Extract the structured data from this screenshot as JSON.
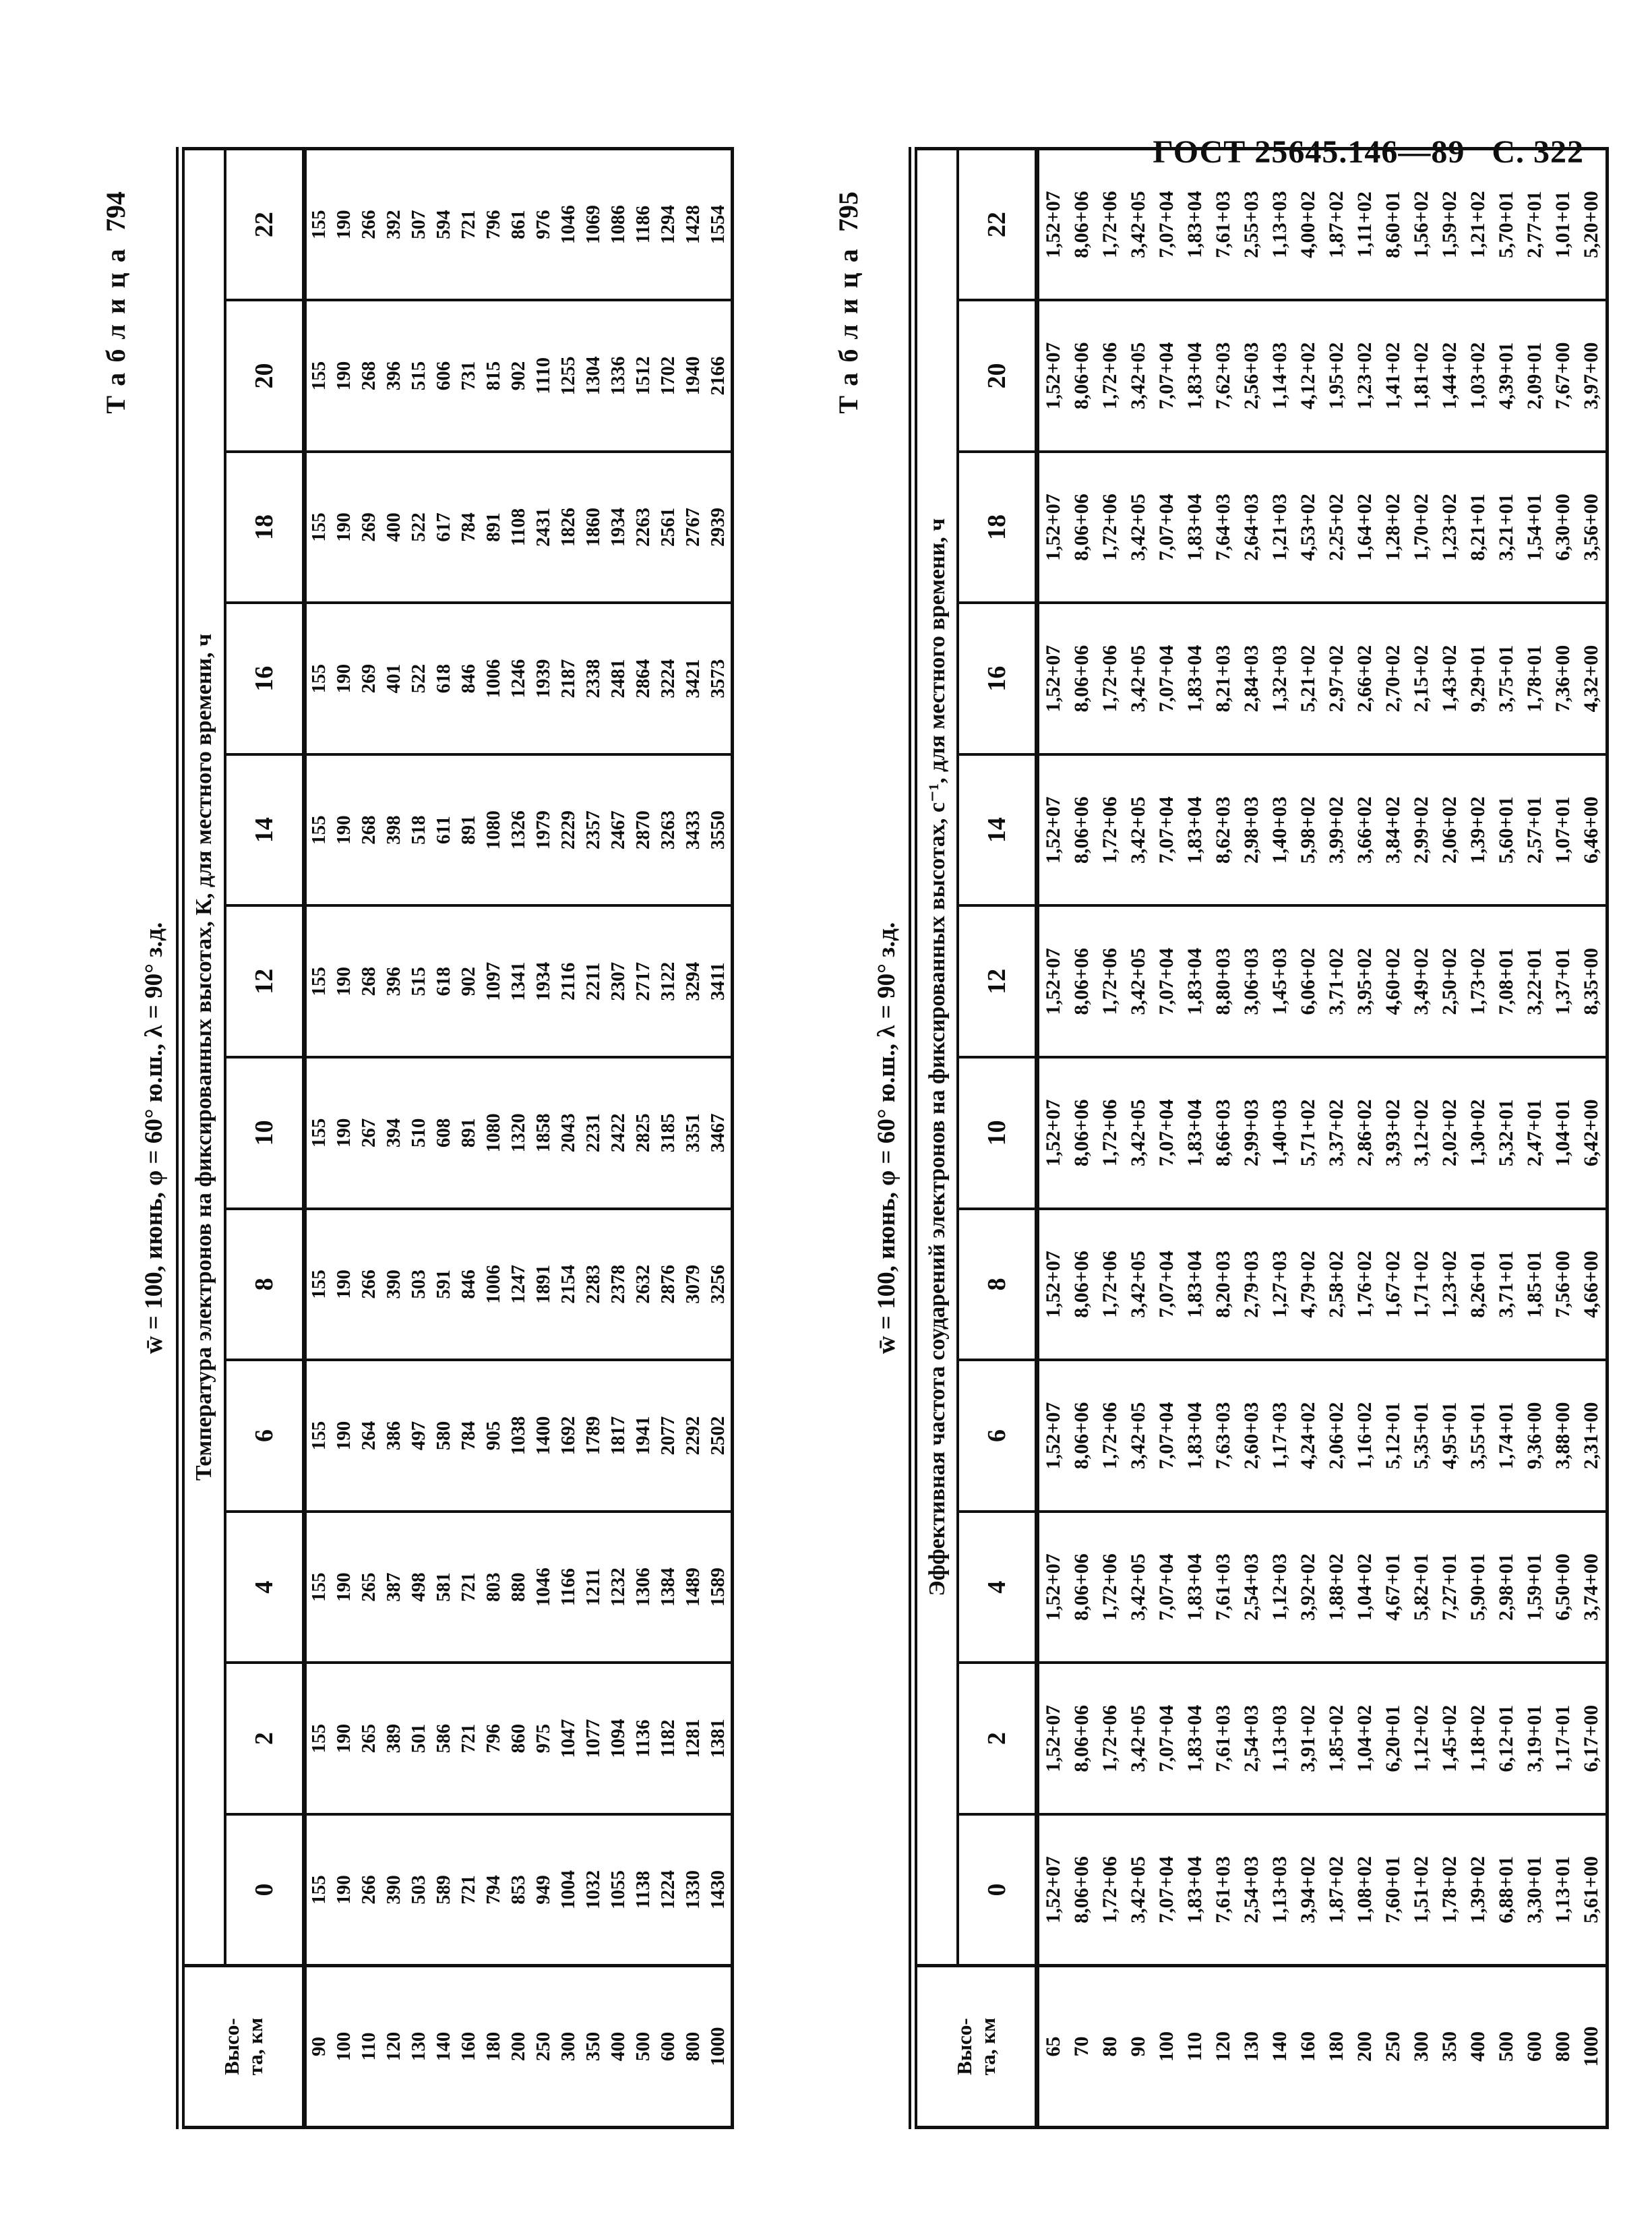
{
  "page_header": {
    "gost": "ГОСТ 25645.146—89",
    "page": "С. 322"
  },
  "tables": [
    {
      "id": "table794",
      "caption_word": "Таблица",
      "caption_num": "794",
      "condition": "w̄ = 100, июнь, φ = 60° ю.ш., λ = 90° з.д.",
      "title": "Температура электронов на фиксированных высотах, К, для местного времени, ч",
      "height_header": [
        "Высо-",
        "та, км"
      ],
      "times": [
        "0",
        "2",
        "4",
        "6",
        "8",
        "10",
        "12",
        "14",
        "16",
        "18",
        "20",
        "22"
      ],
      "heights": [
        "90",
        "100",
        "110",
        "120",
        "130",
        "140",
        "160",
        "180",
        "200",
        "250",
        "300",
        "350",
        "400",
        "500",
        "600",
        "800",
        "1000"
      ],
      "values_by_time": {
        "0": [
          "155",
          "190",
          "266",
          "390",
          "503",
          "589",
          "721",
          "794",
          "853",
          "949",
          "1004",
          "1032",
          "1055",
          "1138",
          "1224",
          "1330",
          "1430"
        ],
        "2": [
          "155",
          "190",
          "265",
          "389",
          "501",
          "586",
          "721",
          "796",
          "860",
          "975",
          "1047",
          "1077",
          "1094",
          "1136",
          "1182",
          "1281",
          "1381"
        ],
        "4": [
          "155",
          "190",
          "265",
          "387",
          "498",
          "581",
          "721",
          "803",
          "880",
          "1046",
          "1166",
          "1211",
          "1232",
          "1306",
          "1384",
          "1489",
          "1589"
        ],
        "6": [
          "155",
          "190",
          "264",
          "386",
          "497",
          "580",
          "784",
          "905",
          "1038",
          "1400",
          "1692",
          "1789",
          "1817",
          "1941",
          "2077",
          "2292",
          "2502"
        ],
        "8": [
          "155",
          "190",
          "266",
          "390",
          "503",
          "591",
          "846",
          "1006",
          "1247",
          "1891",
          "2154",
          "2283",
          "2378",
          "2632",
          "2876",
          "3079",
          "3256"
        ],
        "10": [
          "155",
          "190",
          "267",
          "394",
          "510",
          "608",
          "891",
          "1080",
          "1320",
          "1858",
          "2043",
          "2231",
          "2422",
          "2825",
          "3185",
          "3351",
          "3467"
        ],
        "12": [
          "155",
          "190",
          "268",
          "396",
          "515",
          "618",
          "902",
          "1097",
          "1341",
          "1934",
          "2116",
          "2211",
          "2307",
          "2717",
          "3122",
          "3294",
          "3411"
        ],
        "14": [
          "155",
          "190",
          "268",
          "398",
          "518",
          "611",
          "891",
          "1080",
          "1326",
          "1979",
          "2229",
          "2357",
          "2467",
          "2870",
          "3263",
          "3433",
          "3550"
        ],
        "16": [
          "155",
          "190",
          "269",
          "401",
          "522",
          "618",
          "846",
          "1006",
          "1246",
          "1939",
          "2187",
          "2338",
          "2481",
          "2864",
          "3224",
          "3421",
          "3573"
        ],
        "18": [
          "155",
          "190",
          "269",
          "400",
          "522",
          "617",
          "784",
          "891",
          "1108",
          "2431",
          "1826",
          "1860",
          "1934",
          "2263",
          "2561",
          "2767",
          "2939"
        ],
        "20": [
          "155",
          "190",
          "268",
          "396",
          "515",
          "606",
          "731",
          "815",
          "902",
          "1110",
          "1255",
          "1304",
          "1336",
          "1512",
          "1702",
          "1940",
          "2166"
        ],
        "22": [
          "155",
          "190",
          "266",
          "392",
          "507",
          "594",
          "721",
          "796",
          "861",
          "976",
          "1046",
          "1069",
          "1086",
          "1186",
          "1294",
          "1428",
          "1554"
        ]
      }
    },
    {
      "id": "table795",
      "caption_word": "Таблица",
      "caption_num": "795",
      "condition": "w̄ = 100, июнь, φ = 60° ю.ш., λ = 90° з.д.",
      "title": "Эффективная частота соударений электронов на фиксированных высотах, с⁻¹, для местного времени, ч",
      "height_header": [
        "Высо-",
        "та, км"
      ],
      "times": [
        "0",
        "2",
        "4",
        "6",
        "8",
        "10",
        "12",
        "14",
        "16",
        "18",
        "20",
        "22"
      ],
      "heights": [
        "65",
        "70",
        "80",
        "90",
        "100",
        "110",
        "120",
        "130",
        "140",
        "160",
        "180",
        "200",
        "250",
        "300",
        "350",
        "400",
        "500",
        "600",
        "800",
        "1000"
      ],
      "values_by_time": {
        "0": [
          "1,52+07",
          "8,06+06",
          "1,72+06",
          "3,42+05",
          "7,07+04",
          "1,83+04",
          "7,61+03",
          "2,54+03",
          "1,13+03",
          "3,94+02",
          "1,87+02",
          "1,08+02",
          "7,60+01",
          "1,51+02",
          "1,78+02",
          "1,39+02",
          "6,88+01",
          "3,30+01",
          "1,13+01",
          "5,61+00"
        ],
        "2": [
          "1,52+07",
          "8,06+06",
          "1,72+06",
          "3,42+05",
          "7,07+04",
          "1,83+04",
          "7,61+03",
          "2,54+03",
          "1,13+03",
          "3,91+02",
          "1,85+02",
          "1,04+02",
          "6,20+01",
          "1,12+02",
          "1,45+02",
          "1,18+02",
          "6,12+01",
          "3,19+01",
          "1,17+01",
          "6,17+00"
        ],
        "4": [
          "1,52+07",
          "8,06+06",
          "1,72+06",
          "3,42+05",
          "7,07+04",
          "1,83+04",
          "7,61+03",
          "2,54+03",
          "1,12+03",
          "3,92+02",
          "1,88+02",
          "1,04+02",
          "4,67+01",
          "5,82+01",
          "7,27+01",
          "5,90+01",
          "2,98+01",
          "1,59+01",
          "6,50+00",
          "3,74+00"
        ],
        "6": [
          "1,52+07",
          "8,06+06",
          "1,72+06",
          "3,42+05",
          "7,07+04",
          "1,83+04",
          "7,63+03",
          "2,60+03",
          "1,17+03",
          "4,24+02",
          "2,06+02",
          "1,16+02",
          "5,12+01",
          "5,35+01",
          "4,95+01",
          "3,55+01",
          "1,74+01",
          "9,36+00",
          "3,88+00",
          "2,31+00"
        ],
        "8": [
          "1,52+07",
          "8,06+06",
          "1,72+06",
          "3,42+05",
          "7,07+04",
          "1,83+04",
          "8,20+03",
          "2,79+03",
          "1,27+03",
          "4,79+02",
          "2,58+02",
          "1,76+02",
          "1,67+02",
          "1,71+02",
          "1,23+02",
          "8,26+01",
          "3,71+01",
          "1,85+01",
          "7,56+00",
          "4,66+00"
        ],
        "10": [
          "1,52+07",
          "8,06+06",
          "1,72+06",
          "3,42+05",
          "7,07+04",
          "1,83+04",
          "8,66+03",
          "2,99+03",
          "1,40+03",
          "5,71+02",
          "3,37+02",
          "2,86+02",
          "3,93+02",
          "3,12+02",
          "2,02+02",
          "1,30+02",
          "5,32+01",
          "2,47+01",
          "1,04+01",
          "6,42+00"
        ],
        "12": [
          "1,52+07",
          "8,06+06",
          "1,72+06",
          "3,42+05",
          "7,07+04",
          "1,83+04",
          "8,80+03",
          "3,06+03",
          "1,45+03",
          "6,06+02",
          "3,71+02",
          "3,95+02",
          "4,60+02",
          "3,49+02",
          "2,50+02",
          "1,73+02",
          "7,08+01",
          "3,22+01",
          "1,37+01",
          "8,35+00"
        ],
        "14": [
          "1,52+07",
          "8,06+06",
          "1,72+06",
          "3,42+05",
          "7,07+04",
          "1,83+04",
          "8,62+03",
          "2,98+03",
          "1,40+03",
          "5,98+02",
          "3,99+02",
          "3,66+02",
          "3,84+02",
          "2,99+02",
          "2,06+02",
          "1,39+02",
          "5,60+01",
          "2,57+01",
          "1,07+01",
          "6,46+00"
        ],
        "16": [
          "1,52+07",
          "8,06+06",
          "1,72+06",
          "3,42+05",
          "7,07+04",
          "1,83+04",
          "8,21+03",
          "2,84+03",
          "1,32+03",
          "5,21+02",
          "2,97+02",
          "2,66+02",
          "2,70+02",
          "2,15+02",
          "1,43+02",
          "9,29+01",
          "3,75+01",
          "1,78+01",
          "7,36+00",
          "4,32+00"
        ],
        "18": [
          "1,52+07",
          "8,06+06",
          "1,72+06",
          "3,42+05",
          "7,07+04",
          "1,83+04",
          "7,64+03",
          "2,64+03",
          "1,21+03",
          "4,53+02",
          "2,25+02",
          "1,64+02",
          "1,28+02",
          "1,70+02",
          "1,23+02",
          "8,21+01",
          "3,21+01",
          "1,54+01",
          "6,30+00",
          "3,56+00"
        ],
        "20": [
          "1,52+07",
          "8,06+06",
          "1,72+06",
          "3,42+05",
          "7,07+04",
          "1,83+04",
          "7,62+03",
          "2,56+03",
          "1,14+03",
          "4,12+02",
          "1,95+02",
          "1,23+02",
          "1,41+02",
          "1,81+02",
          "1,44+02",
          "1,03+02",
          "4,39+01",
          "2,09+01",
          "7,67+00",
          "3,97+00"
        ],
        "22": [
          "1,52+07",
          "8,06+06",
          "1,72+06",
          "3,42+05",
          "7,07+04",
          "1,83+04",
          "7,61+03",
          "2,55+03",
          "1,13+03",
          "4,00+02",
          "1,87+02",
          "1,11+02",
          "8,60+01",
          "1,56+02",
          "1,59+02",
          "1,21+02",
          "5,70+01",
          "2,77+01",
          "1,01+01",
          "5,20+00"
        ]
      }
    }
  ]
}
